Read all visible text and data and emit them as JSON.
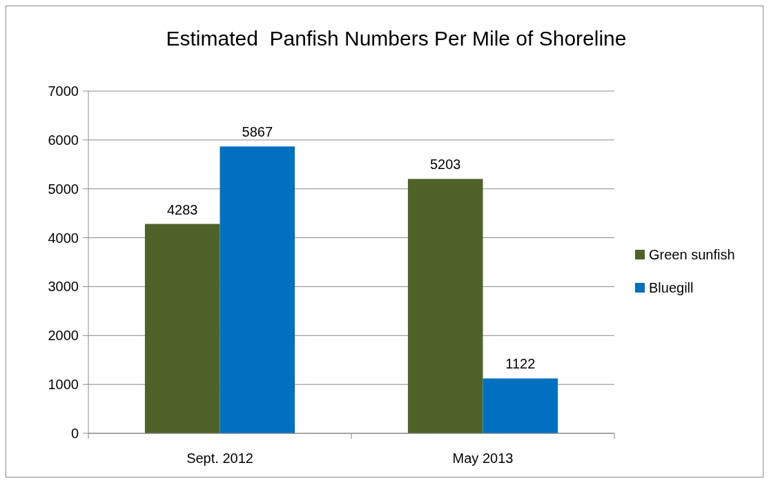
{
  "chart_data": {
    "type": "bar",
    "title": "Estimated  Panfish Numbers Per Mile of Shoreline",
    "categories": [
      "Sept. 2012",
      "May 2013"
    ],
    "series": [
      {
        "name": "Green sunfish",
        "color": "#4f6228",
        "values": [
          4283,
          5203
        ]
      },
      {
        "name": "Bluegill",
        "color": "#0070c0",
        "values": [
          5867,
          1122
        ]
      }
    ],
    "ylim": [
      0,
      7000
    ],
    "yticks": [
      0,
      1000,
      2000,
      3000,
      4000,
      5000,
      6000,
      7000
    ],
    "grid": "y",
    "legend": "right",
    "data_labels": true
  }
}
